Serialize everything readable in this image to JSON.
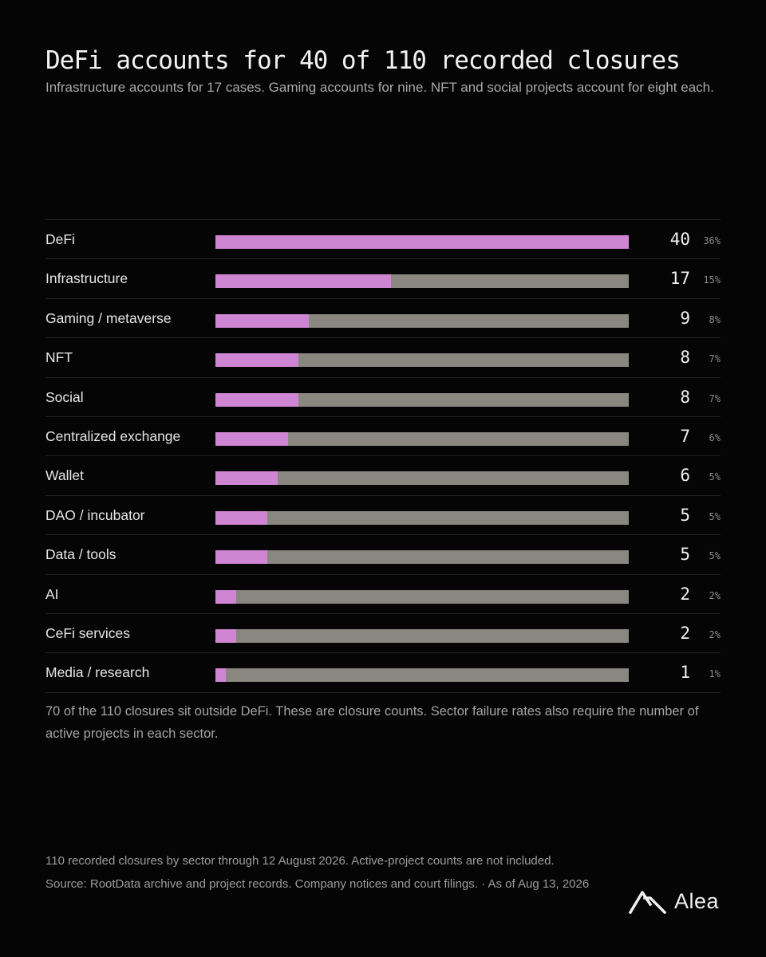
{
  "header": {
    "title": "DeFi accounts for 40 of 110 recorded closures",
    "subtitle": "Infrastructure accounts for 17 cases. Gaming accounts for nine. NFT and social projects account for eight each."
  },
  "chart_data": {
    "type": "bar",
    "orientation": "horizontal",
    "total": 110,
    "max": 40,
    "colors": {
      "fill": "#cf86d2",
      "track": "#8a8680"
    },
    "rows": [
      {
        "label": "DeFi",
        "value": 40,
        "pct": "36%"
      },
      {
        "label": "Infrastructure",
        "value": 17,
        "pct": "15%"
      },
      {
        "label": "Gaming / metaverse",
        "value": 9,
        "pct": "8%"
      },
      {
        "label": "NFT",
        "value": 8,
        "pct": "7%"
      },
      {
        "label": "Social",
        "value": 8,
        "pct": "7%"
      },
      {
        "label": "Centralized exchange",
        "value": 7,
        "pct": "6%"
      },
      {
        "label": "Wallet",
        "value": 6,
        "pct": "5%"
      },
      {
        "label": "DAO / incubator",
        "value": 5,
        "pct": "5%"
      },
      {
        "label": "Data / tools",
        "value": 5,
        "pct": "5%"
      },
      {
        "label": "AI",
        "value": 2,
        "pct": "2%"
      },
      {
        "label": "CeFi services",
        "value": 2,
        "pct": "2%"
      },
      {
        "label": "Media / research",
        "value": 1,
        "pct": "1%"
      }
    ]
  },
  "note": "70 of the 110 closures sit outside DeFi. These are closure counts. Sector failure rates also require the number of active projects in each sector.",
  "footer": {
    "line1": "110 recorded closures by sector through 12 August 2026. Active-project counts are not included.",
    "line2": "Source: RootData archive and project records. Company notices and court filings. · As of Aug 13, 2026",
    "brand": "Alea",
    "brand_icon": "alea-logo-icon"
  }
}
